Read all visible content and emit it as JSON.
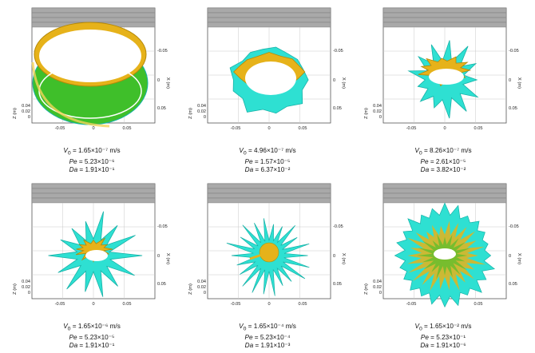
{
  "figure": {
    "panels": [
      {
        "stage": "ring",
        "top_axis": {
          "ticks": [
            "-0.05",
            "0",
            "0.05"
          ]
        },
        "side_axis": {
          "ticks": [
            "-0.05",
            "0",
            "0.05"
          ],
          "label": "X (m)"
        },
        "z_axis": {
          "ticks": [
            "0.04",
            "0.02",
            "0"
          ],
          "label": "Z (m)"
        },
        "caption": {
          "v0_value": "1.65×10⁻⁷",
          "v0_unit": "m/s",
          "pe_value": "5.23×10⁻⁶",
          "da_value": "1.91×10⁻¹"
        }
      },
      {
        "stage": "wavy",
        "top_axis": {
          "ticks": [
            "-0.05",
            "0",
            "0.05"
          ]
        },
        "side_axis": {
          "ticks": [
            "-0.05",
            "0",
            "0.05"
          ],
          "label": "X (m)"
        },
        "z_axis": {
          "ticks": [
            "0.04",
            "0.02",
            "0"
          ],
          "label": "Z (m)"
        },
        "caption": {
          "v0_value": "4.96×10⁻⁷",
          "v0_unit": "m/s",
          "pe_value": "1.57×10⁻⁵",
          "da_value": "6.37×10⁻²"
        }
      },
      {
        "stage": "spiky",
        "top_axis": {
          "ticks": [
            "-0.05",
            "0",
            "0.05"
          ]
        },
        "side_axis": {
          "ticks": [
            "-0.05",
            "0",
            "0.05"
          ],
          "label": "X (m)"
        },
        "z_axis": {
          "ticks": [
            "0.04",
            "0.02",
            "0"
          ],
          "label": "Z (m)"
        },
        "caption": {
          "v0_value": "8.26×10⁻⁷",
          "v0_unit": "m/s",
          "pe_value": "2.61×10⁻⁵",
          "da_value": "3.82×10⁻²"
        }
      },
      {
        "stage": "fingers",
        "top_axis": {
          "ticks": [
            "-0.05",
            "0",
            "0.05"
          ]
        },
        "side_axis": {
          "ticks": [
            "-0.05",
            "0",
            "0.05"
          ],
          "label": "X (m)"
        },
        "z_axis": {
          "ticks": [
            "0.04",
            "0.02",
            "0"
          ],
          "label": "Z (m)"
        },
        "caption": {
          "v0_value": "1.65×10⁻⁶",
          "v0_unit": "m/s",
          "pe_value": "5.23×10⁻⁵",
          "da_value": "1.91×10⁻¹"
        }
      },
      {
        "stage": "dense-fingers",
        "top_axis": {
          "ticks": [
            "-0.05",
            "0",
            "0.05"
          ]
        },
        "side_axis": {
          "ticks": [
            "-0.05",
            "0",
            "0.05"
          ],
          "label": "X (m)"
        },
        "z_axis": {
          "ticks": [
            "0.04",
            "0.02",
            "0"
          ],
          "label": "Z (m)"
        },
        "caption": {
          "v0_value": "1.65×10⁻⁴",
          "v0_unit": "m/s",
          "pe_value": "5.23×10⁻⁴",
          "da_value": "1.91×10⁻³"
        }
      },
      {
        "stage": "full-disk",
        "top_axis": {
          "ticks": [
            "-0.05",
            "0",
            "0.05"
          ]
        },
        "side_axis": {
          "ticks": [
            "-0.05",
            "0",
            "0.05"
          ],
          "label": "X (m)"
        },
        "z_axis": {
          "ticks": [
            "0.04",
            "0.02",
            "0"
          ],
          "label": "Z (m)"
        },
        "caption": {
          "v0_value": "1.65×10⁻²",
          "v0_unit": "m/s",
          "pe_value": "5.23×10⁻¹",
          "da_value": "1.91×10⁻⁶"
        }
      }
    ],
    "colors": {
      "cyan": "#2ee0d2",
      "cyan_dark": "#17b2a8",
      "yellow": "#e6b21a",
      "yellow_light": "#f4d45a",
      "green": "#3fbf2a",
      "header_gray": "#a9a9a9",
      "grid": "#c8c8c8"
    }
  }
}
